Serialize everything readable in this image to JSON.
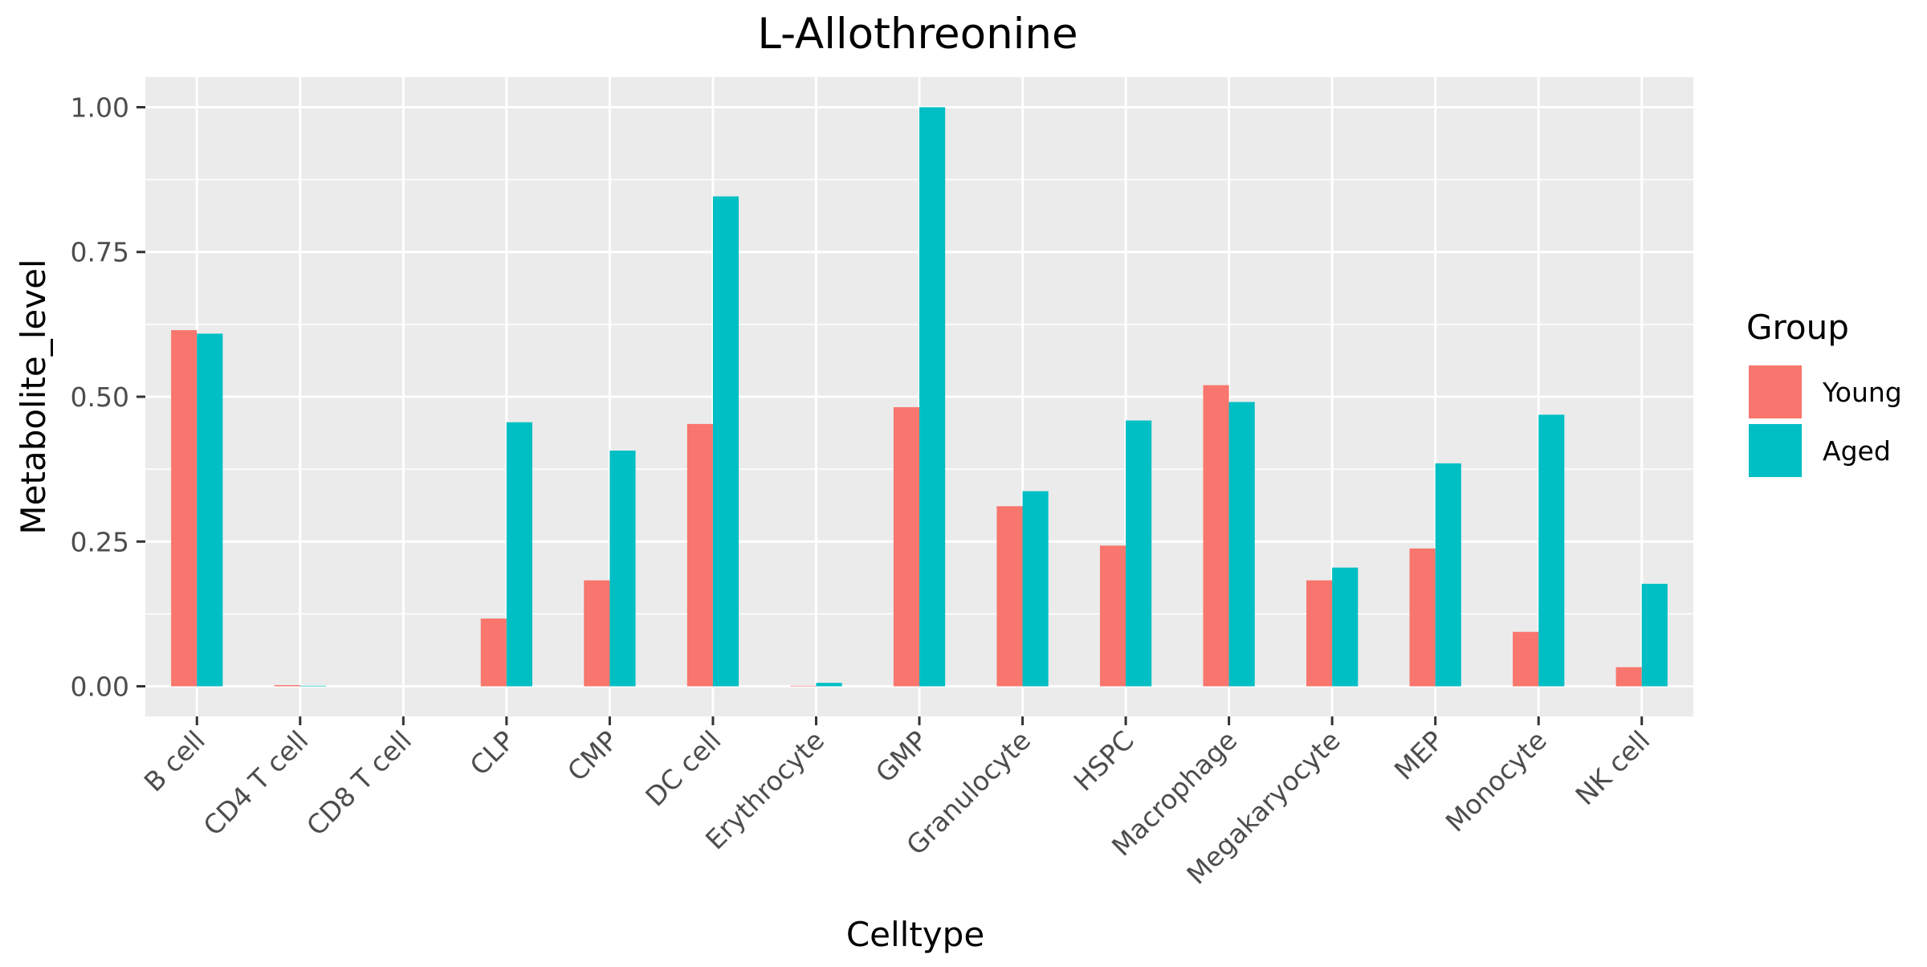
{
  "chart_data": {
    "type": "bar",
    "title": "L-Allothreonine",
    "xlabel": "Celltype",
    "ylabel": "Metabolite_level",
    "categories": [
      "B cell",
      "CD4 T cell",
      "CD8 T cell",
      "CLP",
      "CMP",
      "DC cell",
      "Erythrocyte",
      "GMP",
      "Granulocyte",
      "HSPC",
      "Macrophage",
      "Megakaryocyte",
      "MEP",
      "Monocyte",
      "NK cell"
    ],
    "series": [
      {
        "name": "Young",
        "color": "#F8766D",
        "values": [
          0.615,
          0.002,
          0.0,
          0.117,
          0.183,
          0.453,
          0.001,
          0.482,
          0.311,
          0.243,
          0.52,
          0.183,
          0.238,
          0.094,
          0.033
        ]
      },
      {
        "name": "Aged",
        "color": "#00BFC4",
        "values": [
          0.609,
          0.001,
          0.0,
          0.456,
          0.407,
          0.846,
          0.006,
          1.0,
          0.337,
          0.459,
          0.491,
          0.205,
          0.385,
          0.469,
          0.177
        ]
      }
    ],
    "ylim": [
      -0.052,
      1.052
    ],
    "yticks": [
      0.0,
      0.25,
      0.5,
      0.75,
      1.0
    ],
    "ytick_labels": [
      "0.00",
      "0.25",
      "0.50",
      "0.75",
      "1.00"
    ],
    "grid": true,
    "legend": {
      "title": "Group",
      "position": "right"
    }
  }
}
